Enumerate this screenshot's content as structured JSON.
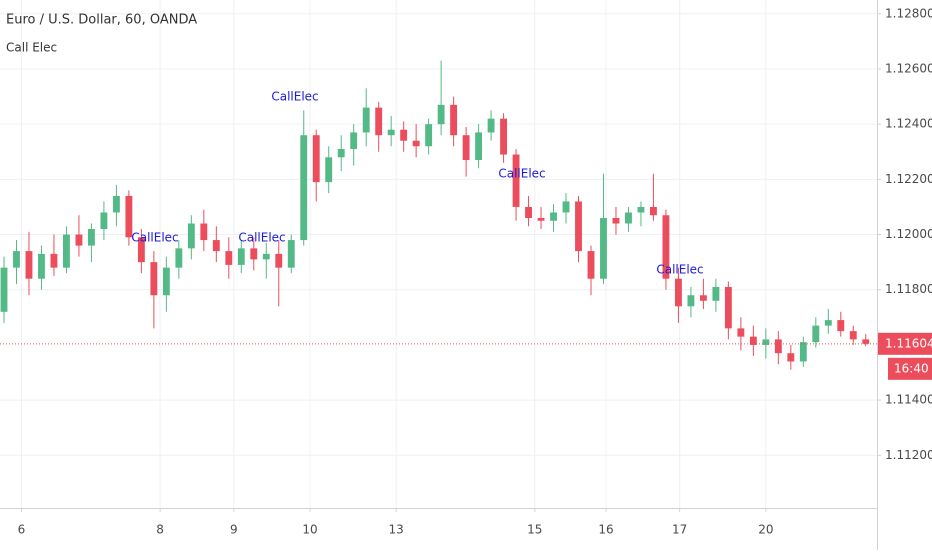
{
  "chart_data": {
    "type": "candlestick",
    "title": "Euro / U.S. Dollar, 60, OANDA",
    "subtitle": "Call Elec",
    "up_color": "#53b987",
    "down_color": "#eb4d5c",
    "ylim": [
      1.11009,
      1.1285
    ],
    "yticks": [
      {
        "value": 1.128,
        "label": "1.12800"
      },
      {
        "value": 1.126,
        "label": "1.12600"
      },
      {
        "value": 1.124,
        "label": "1.12400"
      },
      {
        "value": 1.122,
        "label": "1.12200"
      },
      {
        "value": 1.12,
        "label": "1.12000"
      },
      {
        "value": 1.118,
        "label": "1.11800"
      },
      {
        "value": 1.114,
        "label": "1.11400"
      },
      {
        "value": 1.112,
        "label": "1.11200"
      }
    ],
    "xlim": [
      -0.32,
      69.9
    ],
    "xticks": [
      {
        "value": 1.4,
        "label": "6"
      },
      {
        "value": 12.5,
        "label": "8"
      },
      {
        "value": 18.4,
        "label": "9"
      },
      {
        "value": 24.5,
        "label": "10"
      },
      {
        "value": 31.4,
        "label": "13"
      },
      {
        "value": 42.5,
        "label": "15"
      },
      {
        "value": 48.2,
        "label": "16"
      },
      {
        "value": 54.1,
        "label": "17"
      },
      {
        "value": 61,
        "label": "20"
      }
    ],
    "grid": true,
    "last_price": 1.11604,
    "countdown": "16:40",
    "annotations": [
      "CallElec",
      "CallElec",
      "CallElec",
      "CallElec",
      "CallElec"
    ],
    "candles": [
      [
        1.1172,
        1.1192,
        1.1168,
        1.1188
      ],
      [
        1.1188,
        1.1198,
        1.1182,
        1.1194
      ],
      [
        1.1194,
        1.1201,
        1.1178,
        1.1184
      ],
      [
        1.1184,
        1.1196,
        1.118,
        1.1193
      ],
      [
        1.1193,
        1.12,
        1.1185,
        1.1188
      ],
      [
        1.1188,
        1.1203,
        1.1186,
        1.12
      ],
      [
        1.12,
        1.1207,
        1.1192,
        1.1196
      ],
      [
        1.1196,
        1.1204,
        1.119,
        1.1202
      ],
      [
        1.1202,
        1.1212,
        1.1198,
        1.1208
      ],
      [
        1.1208,
        1.1218,
        1.1203,
        1.1214
      ],
      [
        1.1214,
        1.1216,
        1.1196,
        1.1199
      ],
      [
        1.1199,
        1.1202,
        1.1186,
        1.119
      ],
      [
        1.119,
        1.1194,
        1.1166,
        1.1178
      ],
      [
        1.1178,
        1.1192,
        1.1172,
        1.1188
      ],
      [
        1.1188,
        1.1198,
        1.1184,
        1.1195
      ],
      [
        1.1195,
        1.1207,
        1.1191,
        1.1204
      ],
      [
        1.1204,
        1.1209,
        1.1194,
        1.1198
      ],
      [
        1.1198,
        1.1203,
        1.119,
        1.1194
      ],
      [
        1.1194,
        1.1199,
        1.1184,
        1.1189
      ],
      [
        1.1189,
        1.1198,
        1.1186,
        1.1195
      ],
      [
        1.1195,
        1.1199,
        1.1187,
        1.1191
      ],
      [
        1.1191,
        1.1197,
        1.1184,
        1.1193
      ],
      [
        1.1193,
        1.1198,
        1.1174,
        1.1188
      ],
      [
        1.1188,
        1.12,
        1.1186,
        1.1198
      ],
      [
        1.1198,
        1.1245,
        1.1196,
        1.1236
      ],
      [
        1.1236,
        1.1238,
        1.1212,
        1.1219
      ],
      [
        1.1219,
        1.1232,
        1.1215,
        1.1228
      ],
      [
        1.1228,
        1.1236,
        1.1223,
        1.1231
      ],
      [
        1.1231,
        1.124,
        1.1225,
        1.1237
      ],
      [
        1.1237,
        1.1253,
        1.1232,
        1.1246
      ],
      [
        1.1246,
        1.1248,
        1.123,
        1.1236
      ],
      [
        1.1236,
        1.1243,
        1.1232,
        1.1238
      ],
      [
        1.1238,
        1.1241,
        1.123,
        1.1234
      ],
      [
        1.1234,
        1.124,
        1.1228,
        1.1232
      ],
      [
        1.1232,
        1.1242,
        1.1229,
        1.124
      ],
      [
        1.124,
        1.1263,
        1.1236,
        1.1247
      ],
      [
        1.1247,
        1.125,
        1.1232,
        1.1236
      ],
      [
        1.1236,
        1.1239,
        1.1221,
        1.1227
      ],
      [
        1.1227,
        1.124,
        1.1224,
        1.1237
      ],
      [
        1.1237,
        1.1245,
        1.1234,
        1.1242
      ],
      [
        1.1242,
        1.1244,
        1.1226,
        1.1229
      ],
      [
        1.1229,
        1.1231,
        1.1205,
        1.121
      ],
      [
        1.121,
        1.1214,
        1.1203,
        1.1206
      ],
      [
        1.1206,
        1.121,
        1.1202,
        1.1205
      ],
      [
        1.1205,
        1.1211,
        1.1201,
        1.1208
      ],
      [
        1.1208,
        1.1215,
        1.1204,
        1.1212
      ],
      [
        1.1212,
        1.1214,
        1.119,
        1.1194
      ],
      [
        1.1194,
        1.1196,
        1.1178,
        1.1184
      ],
      [
        1.1184,
        1.1222,
        1.1182,
        1.1206
      ],
      [
        1.1206,
        1.121,
        1.12,
        1.1204
      ],
      [
        1.1204,
        1.121,
        1.1201,
        1.1208
      ],
      [
        1.1208,
        1.1212,
        1.1203,
        1.121
      ],
      [
        1.121,
        1.1222,
        1.1205,
        1.1207
      ],
      [
        1.1207,
        1.1209,
        1.118,
        1.1184
      ],
      [
        1.1184,
        1.1188,
        1.1168,
        1.1174
      ],
      [
        1.1174,
        1.1181,
        1.117,
        1.1178
      ],
      [
        1.1178,
        1.1184,
        1.1173,
        1.1176
      ],
      [
        1.1176,
        1.1184,
        1.1172,
        1.1181
      ],
      [
        1.1181,
        1.1183,
        1.1162,
        1.1166
      ],
      [
        1.1166,
        1.117,
        1.1158,
        1.1163
      ],
      [
        1.1163,
        1.1167,
        1.1156,
        1.116
      ],
      [
        1.116,
        1.1166,
        1.1155,
        1.1162
      ],
      [
        1.1162,
        1.1165,
        1.1153,
        1.1157
      ],
      [
        1.1157,
        1.116,
        1.1151,
        1.1154
      ],
      [
        1.1154,
        1.1163,
        1.1152,
        1.1161
      ],
      [
        1.1161,
        1.117,
        1.1159,
        1.1167
      ],
      [
        1.1167,
        1.1173,
        1.1164,
        1.1169
      ],
      [
        1.1169,
        1.1172,
        1.1163,
        1.1165
      ],
      [
        1.1165,
        1.1167,
        1.116,
        1.1162
      ],
      [
        1.1162,
        1.1164,
        1.11595,
        1.11604
      ]
    ]
  }
}
